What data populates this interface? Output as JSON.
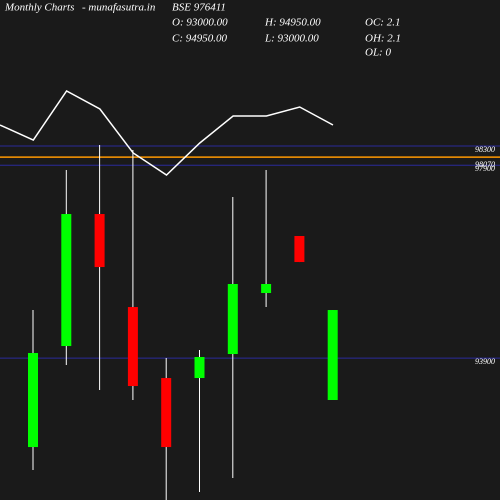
{
  "chart_data": {
    "type": "candlestick",
    "title": "Monthly Charts",
    "source": "- munafasutra.in",
    "symbol": "BSE 976411",
    "stats": {
      "open": "O: 93000.00",
      "high": "H: 94950.00",
      "close": "C: 94950.00",
      "low": "L: 93000.00",
      "oc": "OC: 2.1",
      "oh": "OH: 2.1",
      "ol": "OL: 0"
    },
    "up_color": "#00ff00",
    "down_color": "#ff0000",
    "level_color": "#ff9900",
    "grid_color": "#2a2a9a",
    "ylim": [
      90955,
      101330
    ],
    "yticks": [
      98300,
      97900,
      93900
    ],
    "level": 98070,
    "candles": {
      "open": [
        92054,
        94150,
        96889,
        94959,
        93486,
        93486,
        93984,
        95250,
        96433,
        93030
      ],
      "high": [
        94897,
        97802,
        98321,
        98217,
        93901,
        94067,
        97242,
        97802,
        96433,
        94897
      ],
      "low": [
        91577,
        93756,
        93237,
        93030,
        90955,
        91121,
        91411,
        94959,
        95893,
        93030
      ],
      "close": [
        94005,
        96889,
        95789,
        93320,
        92054,
        93922,
        95437,
        95437,
        95893,
        94897
      ]
    },
    "overlay": {
      "ylim": [
        0,
        100
      ],
      "values": [
        55,
        40,
        89,
        71,
        27,
        5,
        37,
        64,
        64,
        73,
        55
      ]
    }
  }
}
